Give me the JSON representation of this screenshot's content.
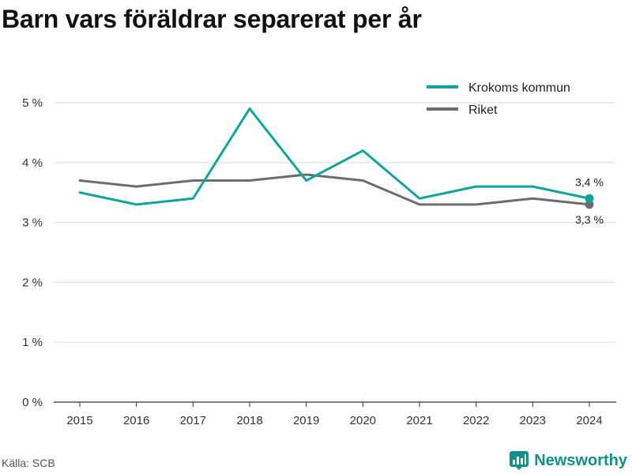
{
  "title": "Barn vars föräldrar separerat per år",
  "source": "Källa: SCB",
  "brand": "Newsworthy",
  "colors": {
    "kommun": "#12a39a",
    "riket": "#6d6d70",
    "grid": "#dddddd",
    "axis": "#333333"
  },
  "chart_data": {
    "type": "line",
    "title": "Barn vars föräldrar separerat per år",
    "x": [
      2015,
      2016,
      2017,
      2018,
      2019,
      2020,
      2021,
      2022,
      2023,
      2024
    ],
    "ylim": [
      0,
      5
    ],
    "yticks": [
      0,
      1,
      2,
      3,
      4,
      5
    ],
    "ytick_labels": [
      "0 %",
      "1 %",
      "2 %",
      "3 %",
      "4 %",
      "5 %"
    ],
    "grid": true,
    "legend": "top-right",
    "series": [
      {
        "name": "Krokoms kommun",
        "values": [
          3.5,
          3.3,
          3.4,
          4.9,
          3.7,
          4.2,
          3.4,
          3.6,
          3.6,
          3.4
        ],
        "end_label": "3,4 %"
      },
      {
        "name": "Riket",
        "values": [
          3.7,
          3.6,
          3.7,
          3.7,
          3.8,
          3.7,
          3.3,
          3.3,
          3.4,
          3.3
        ],
        "end_label": "3,3 %"
      }
    ]
  }
}
